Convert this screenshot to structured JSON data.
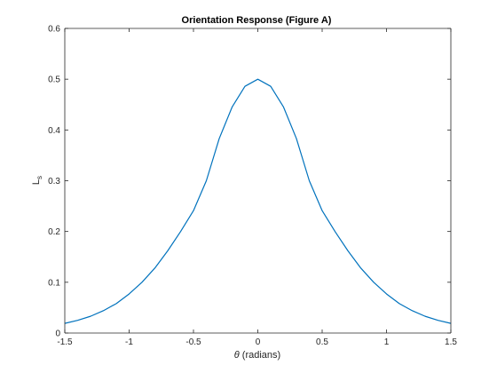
{
  "chart_data": {
    "type": "line",
    "title": "Orientation Response (Figure A)",
    "xlabel_symbol": "θ",
    "xlabel_text": " (radians)",
    "ylabel_base": "L",
    "ylabel_sub": "s",
    "xlim": [
      -1.5,
      1.5
    ],
    "ylim": [
      0,
      0.6
    ],
    "x_ticks": [
      -1.5,
      -1,
      -0.5,
      0,
      0.5,
      1,
      1.5
    ],
    "x_tick_labels": [
      "-1.5",
      "-1",
      "-0.5",
      "0",
      "0.5",
      "1",
      "1.5"
    ],
    "y_ticks": [
      0,
      0.1,
      0.2,
      0.3,
      0.4,
      0.5,
      0.6
    ],
    "y_tick_labels": [
      "0",
      "0.1",
      "0.2",
      "0.3",
      "0.4",
      "0.5",
      "0.6"
    ],
    "grid": false,
    "legend": "none",
    "series": [
      {
        "color": "#0072BD",
        "x": [
          -1.5,
          -1.4,
          -1.3,
          -1.2,
          -1.1,
          -1.0,
          -0.9,
          -0.8,
          -0.7,
          -0.6,
          -0.5,
          -0.4,
          -0.3,
          -0.2,
          -0.1,
          0,
          0.1,
          0.2,
          0.3,
          0.4,
          0.5,
          0.6,
          0.7,
          0.8,
          0.9,
          1.0,
          1.1,
          1.2,
          1.3,
          1.4,
          1.5
        ],
        "y": [
          0.019,
          0.025,
          0.033,
          0.044,
          0.058,
          0.077,
          0.1,
          0.128,
          0.162,
          0.2,
          0.241,
          0.3,
          0.383,
          0.445,
          0.486,
          0.5,
          0.486,
          0.445,
          0.383,
          0.3,
          0.241,
          0.2,
          0.162,
          0.128,
          0.1,
          0.077,
          0.058,
          0.044,
          0.033,
          0.025,
          0.019
        ]
      }
    ]
  }
}
